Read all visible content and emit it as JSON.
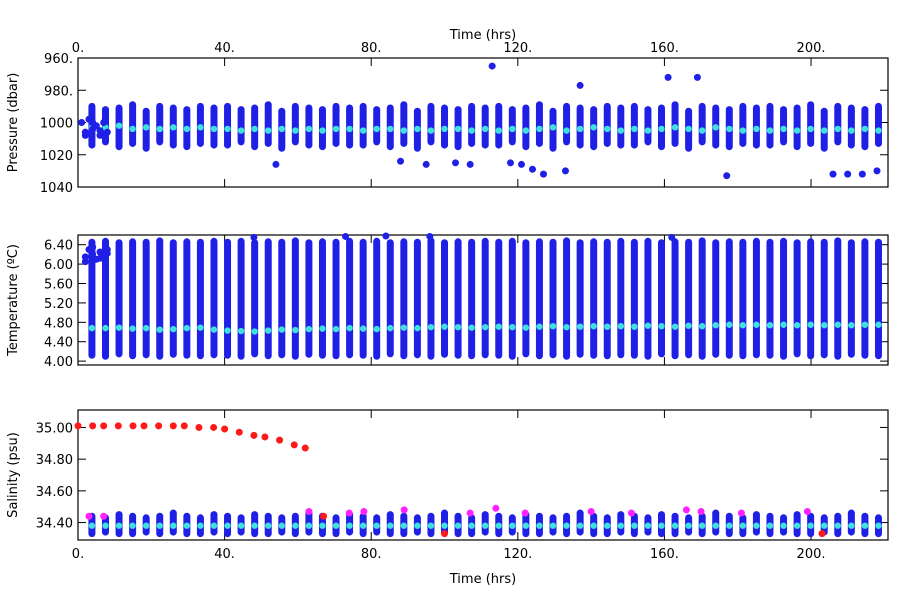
{
  "chart_data": [
    {
      "type": "scatter",
      "xaxis_side": "top",
      "x_label": "Time (hrs)",
      "y_label": "Pressure (dbar)",
      "y_inverted": true,
      "xlim": [
        0,
        221
      ],
      "xticks": [
        {
          "value": 0,
          "label": "0."
        },
        {
          "value": 40,
          "label": "40."
        },
        {
          "value": 80,
          "label": "80."
        },
        {
          "value": 120,
          "label": "120."
        },
        {
          "value": 160,
          "label": "160."
        },
        {
          "value": 200,
          "label": "200."
        }
      ],
      "ylim": [
        960,
        1040
      ],
      "yticks": [
        {
          "value": 960,
          "label": "960."
        },
        {
          "value": 980,
          "label": "980."
        },
        1000,
        1020,
        1040
      ],
      "range_color": "#1f1fe6",
      "mean_color": "#3fe0e0",
      "x": [
        3.8,
        7.5,
        11.2,
        14.9,
        18.6,
        22.3,
        26,
        29.7,
        33.4,
        37.1,
        40.8,
        44.5,
        48.2,
        51.9,
        55.6,
        59.3,
        63,
        66.7,
        70.4,
        74.1,
        77.8,
        81.5,
        85.2,
        88.9,
        92.6,
        96.3,
        100,
        103.7,
        107.4,
        111.1,
        114.8,
        118.5,
        122.2,
        125.9,
        129.6,
        133.3,
        137,
        140.7,
        144.4,
        148.1,
        151.8,
        155.5,
        159.2,
        162.9,
        166.6,
        170.3,
        174,
        177.7,
        181.4,
        185.1,
        188.8,
        192.5,
        196.2,
        199.9,
        203.6,
        207.3,
        211,
        214.7,
        218.4
      ],
      "low": [
        990,
        992,
        991,
        989,
        993,
        990,
        991,
        992,
        990,
        991,
        990,
        992,
        991,
        989,
        993,
        990,
        991,
        992,
        990,
        991,
        990,
        992,
        991,
        989,
        993,
        990,
        991,
        992,
        990,
        991,
        990,
        992,
        991,
        989,
        993,
        990,
        991,
        992,
        990,
        991,
        990,
        992,
        991,
        989,
        993,
        990,
        991,
        992,
        990,
        991,
        990,
        992,
        991,
        989,
        993,
        990,
        991,
        992,
        990
      ],
      "high": [
        1014,
        1012,
        1015,
        1013,
        1016,
        1012,
        1014,
        1015,
        1013,
        1014,
        1014,
        1012,
        1015,
        1013,
        1016,
        1012,
        1014,
        1015,
        1013,
        1014,
        1014,
        1012,
        1015,
        1013,
        1016,
        1012,
        1014,
        1015,
        1013,
        1014,
        1014,
        1012,
        1015,
        1013,
        1016,
        1012,
        1014,
        1015,
        1013,
        1014,
        1014,
        1012,
        1015,
        1013,
        1016,
        1012,
        1014,
        1015,
        1013,
        1014,
        1014,
        1012,
        1015,
        1013,
        1016,
        1012,
        1014,
        1015,
        1013
      ],
      "mean": [
        1003,
        1003,
        1002,
        1004,
        1003,
        1004,
        1003,
        1004,
        1003,
        1004,
        1004,
        1005,
        1004,
        1005,
        1004,
        1005,
        1004,
        1005,
        1004,
        1004,
        1005,
        1004,
        1004,
        1005,
        1004,
        1005,
        1004,
        1004,
        1005,
        1004,
        1005,
        1004,
        1005,
        1004,
        1003,
        1005,
        1004,
        1003,
        1004,
        1005,
        1004,
        1005,
        1004,
        1003,
        1004,
        1005,
        1003,
        1004,
        1005,
        1004,
        1005,
        1004,
        1005,
        1004,
        1005,
        1004,
        1005,
        1004,
        1005
      ],
      "points": [
        {
          "color": "#1f1fe6",
          "x": [
            1,
            2,
            3,
            4,
            5,
            6,
            7,
            8,
            2,
            4,
            6,
            113,
            137,
            161,
            169,
            54,
            127,
            133,
            177,
            206,
            210,
            214,
            218,
            88,
            95,
            103,
            107,
            118,
            121,
            124
          ],
          "y": [
            1000,
            1006,
            998,
            1004,
            1002,
            1008,
            1000,
            1006,
            1008,
            1000,
            1005,
            965,
            977,
            972,
            972,
            1026,
            1032,
            1030,
            1033,
            1032,
            1032,
            1032,
            1030,
            1024,
            1026,
            1025,
            1026,
            1025,
            1026,
            1029
          ]
        }
      ]
    },
    {
      "type": "scatter",
      "xaxis_side": "none",
      "y_label": "Temperature (ºC)",
      "y_inverted": false,
      "xlim": [
        0,
        221
      ],
      "xticks": [
        0,
        40,
        80,
        120,
        160,
        200
      ],
      "ylim": [
        3.92,
        6.6
      ],
      "yticks": [
        {
          "value": 4.0,
          "label": "4.00"
        },
        {
          "value": 4.4,
          "label": "4.40"
        },
        {
          "value": 4.8,
          "label": "4.80"
        },
        {
          "value": 5.2,
          "label": "5.20"
        },
        {
          "value": 5.6,
          "label": "5.60"
        },
        {
          "value": 6.0,
          "label": "6.00"
        },
        {
          "value": 6.4,
          "label": "6.40"
        }
      ],
      "range_color": "#1f1fe6",
      "mean_color": "#3fe0e0",
      "x": [
        3.8,
        7.5,
        11.2,
        14.9,
        18.6,
        22.3,
        26,
        29.7,
        33.4,
        37.1,
        40.8,
        44.5,
        48.2,
        51.9,
        55.6,
        59.3,
        63,
        66.7,
        70.4,
        74.1,
        77.8,
        81.5,
        85.2,
        88.9,
        92.6,
        96.3,
        100,
        103.7,
        107.4,
        111.1,
        114.8,
        118.5,
        122.2,
        125.9,
        129.6,
        133.3,
        137,
        140.7,
        144.4,
        148.1,
        151.8,
        155.5,
        159.2,
        162.9,
        166.6,
        170.3,
        174,
        177.7,
        181.4,
        185.1,
        188.8,
        192.5,
        196.2,
        199.9,
        203.6,
        207.3,
        211,
        214.7,
        218.4
      ],
      "low": [
        4.12,
        4.1,
        4.15,
        4.11,
        4.13,
        4.1,
        4.14,
        4.12,
        4.11,
        4.13,
        4.12,
        4.1,
        4.15,
        4.11,
        4.13,
        4.1,
        4.14,
        4.12,
        4.11,
        4.13,
        4.12,
        4.1,
        4.15,
        4.11,
        4.13,
        4.1,
        4.14,
        4.12,
        4.11,
        4.13,
        4.12,
        4.1,
        4.15,
        4.11,
        4.13,
        4.1,
        4.14,
        4.12,
        4.11,
        4.13,
        4.12,
        4.1,
        4.15,
        4.11,
        4.13,
        4.1,
        4.14,
        4.12,
        4.11,
        4.13,
        4.12,
        4.1,
        4.15,
        4.11,
        4.13,
        4.1,
        4.14,
        4.12,
        4.11
      ],
      "high": [
        6.45,
        6.47,
        6.44,
        6.46,
        6.45,
        6.48,
        6.44,
        6.46,
        6.45,
        6.47,
        6.45,
        6.47,
        6.44,
        6.46,
        6.45,
        6.48,
        6.44,
        6.46,
        6.45,
        6.47,
        6.45,
        6.47,
        6.44,
        6.46,
        6.45,
        6.48,
        6.44,
        6.46,
        6.45,
        6.47,
        6.45,
        6.47,
        6.44,
        6.46,
        6.45,
        6.48,
        6.44,
        6.46,
        6.45,
        6.47,
        6.45,
        6.47,
        6.44,
        6.46,
        6.45,
        6.48,
        6.44,
        6.46,
        6.45,
        6.47,
        6.45,
        6.47,
        6.44,
        6.46,
        6.45,
        6.48,
        6.44,
        6.46,
        6.45
      ],
      "mean": [
        4.68,
        4.68,
        4.69,
        4.67,
        4.68,
        4.65,
        4.66,
        4.68,
        4.69,
        4.65,
        4.63,
        4.62,
        4.61,
        4.63,
        4.65,
        4.64,
        4.66,
        4.67,
        4.66,
        4.68,
        4.67,
        4.66,
        4.68,
        4.69,
        4.68,
        4.7,
        4.71,
        4.7,
        4.69,
        4.7,
        4.71,
        4.7,
        4.69,
        4.71,
        4.72,
        4.7,
        4.71,
        4.72,
        4.71,
        4.72,
        4.71,
        4.73,
        4.72,
        4.71,
        4.73,
        4.72,
        4.74,
        4.75,
        4.74,
        4.75,
        4.74,
        4.75,
        4.74,
        4.75,
        4.74,
        4.75,
        4.74,
        4.75,
        4.75
      ],
      "points": [
        {
          "color": "#1f1fe6",
          "x": [
            2,
            3,
            4,
            5,
            6,
            7,
            8,
            2,
            4,
            6,
            8,
            48,
            73,
            84,
            96,
            162
          ],
          "y": [
            6.15,
            6.3,
            6.2,
            6.1,
            6.25,
            6.18,
            6.3,
            6.05,
            6.35,
            6.12,
            6.22,
            6.55,
            6.57,
            6.58,
            6.57,
            6.55
          ]
        }
      ]
    },
    {
      "type": "scatter",
      "xaxis_side": "bottom",
      "x_label": "Time (hrs)",
      "y_label": "Salinity (psu)",
      "y_inverted": false,
      "xlim": [
        0,
        221
      ],
      "xticks": [
        {
          "value": 0,
          "label": "0."
        },
        {
          "value": 40,
          "label": "40."
        },
        {
          "value": 80,
          "label": "80."
        },
        {
          "value": 120,
          "label": "120."
        },
        {
          "value": 160,
          "label": "160."
        },
        {
          "value": 200,
          "label": "200."
        }
      ],
      "ylim": [
        34.29,
        35.11
      ],
      "yticks": [
        {
          "value": 34.4,
          "label": "34.40"
        },
        {
          "value": 34.6,
          "label": "34.60"
        },
        {
          "value": 34.8,
          "label": "34.80"
        },
        {
          "value": 35.0,
          "label": "35.00"
        }
      ],
      "range_color": "#1f1fe6",
      "mean_color": "#3fe0e0",
      "x": [
        3.8,
        7.5,
        11.2,
        14.9,
        18.6,
        22.3,
        26,
        29.7,
        33.4,
        37.1,
        40.8,
        44.5,
        48.2,
        51.9,
        55.6,
        59.3,
        63,
        66.7,
        70.4,
        74.1,
        77.8,
        81.5,
        85.2,
        88.9,
        92.6,
        96.3,
        100,
        103.7,
        107.4,
        111.1,
        114.8,
        118.5,
        122.2,
        125.9,
        129.6,
        133.3,
        137,
        140.7,
        144.4,
        148.1,
        151.8,
        155.5,
        159.2,
        162.9,
        166.6,
        170.3,
        174,
        177.7,
        181.4,
        185.1,
        188.8,
        192.5,
        196.2,
        199.9,
        203.6,
        207.3,
        211,
        214.7,
        218.4
      ],
      "low": [
        34.33,
        34.34,
        34.33,
        34.33,
        34.34,
        34.33,
        34.34,
        34.33,
        34.33,
        34.34,
        34.33,
        34.34,
        34.33,
        34.33,
        34.34,
        34.33,
        34.34,
        34.33,
        34.33,
        34.34,
        34.33,
        34.34,
        34.33,
        34.33,
        34.34,
        34.33,
        34.34,
        34.33,
        34.33,
        34.34,
        34.33,
        34.34,
        34.33,
        34.33,
        34.34,
        34.33,
        34.34,
        34.33,
        34.33,
        34.34,
        34.33,
        34.34,
        34.33,
        34.33,
        34.34,
        34.33,
        34.34,
        34.33,
        34.33,
        34.34,
        34.33,
        34.34,
        34.33,
        34.33,
        34.34,
        34.33,
        34.34,
        34.33,
        34.33
      ],
      "high": [
        34.44,
        34.43,
        34.45,
        34.44,
        34.43,
        34.44,
        34.46,
        34.44,
        34.43,
        34.45,
        34.44,
        34.43,
        34.45,
        34.44,
        34.43,
        34.44,
        34.46,
        34.44,
        34.43,
        34.45,
        34.44,
        34.43,
        34.45,
        34.44,
        34.43,
        34.44,
        34.46,
        34.44,
        34.43,
        34.45,
        34.44,
        34.43,
        34.45,
        34.44,
        34.43,
        34.44,
        34.46,
        34.44,
        34.43,
        34.45,
        34.44,
        34.43,
        34.45,
        34.44,
        34.43,
        34.44,
        34.46,
        34.44,
        34.43,
        34.45,
        34.44,
        34.43,
        34.45,
        34.44,
        34.43,
        34.44,
        34.46,
        34.44,
        34.43
      ],
      "mean": [
        34.38,
        34.38,
        34.38,
        34.38,
        34.38,
        34.38,
        34.38,
        34.38,
        34.38,
        34.38,
        34.38,
        34.38,
        34.38,
        34.38,
        34.38,
        34.38,
        34.38,
        34.38,
        34.38,
        34.38,
        34.38,
        34.38,
        34.38,
        34.38,
        34.38,
        34.38,
        34.38,
        34.38,
        34.38,
        34.38,
        34.38,
        34.38,
        34.38,
        34.38,
        34.38,
        34.38,
        34.38,
        34.38,
        34.38,
        34.38,
        34.38,
        34.38,
        34.38,
        34.38,
        34.38,
        34.38,
        34.38,
        34.38,
        34.38,
        34.38,
        34.38,
        34.38,
        34.38,
        34.38,
        34.38,
        34.38,
        34.38,
        34.38,
        34.38
      ],
      "points": [
        {
          "color": "#ff1a1a",
          "x": [
            0,
            4,
            7,
            11,
            15,
            18,
            22,
            26,
            29,
            33,
            37,
            40,
            44,
            48,
            51,
            55,
            59,
            62,
            67,
            100,
            203
          ],
          "y": [
            35.01,
            35.01,
            35.01,
            35.01,
            35.01,
            35.01,
            35.01,
            35.01,
            35.01,
            35.0,
            35.0,
            34.99,
            34.97,
            34.95,
            34.94,
            34.92,
            34.89,
            34.87,
            34.44,
            34.33,
            34.33
          ]
        },
        {
          "color": "#ff22ff",
          "x": [
            3,
            7,
            63,
            74,
            78,
            89,
            107,
            114,
            122,
            140,
            151,
            166,
            170,
            181,
            199
          ],
          "y": [
            34.44,
            34.44,
            34.47,
            34.46,
            34.47,
            34.48,
            34.46,
            34.49,
            34.46,
            34.47,
            34.46,
            34.48,
            34.47,
            34.46,
            34.47
          ]
        }
      ]
    }
  ]
}
